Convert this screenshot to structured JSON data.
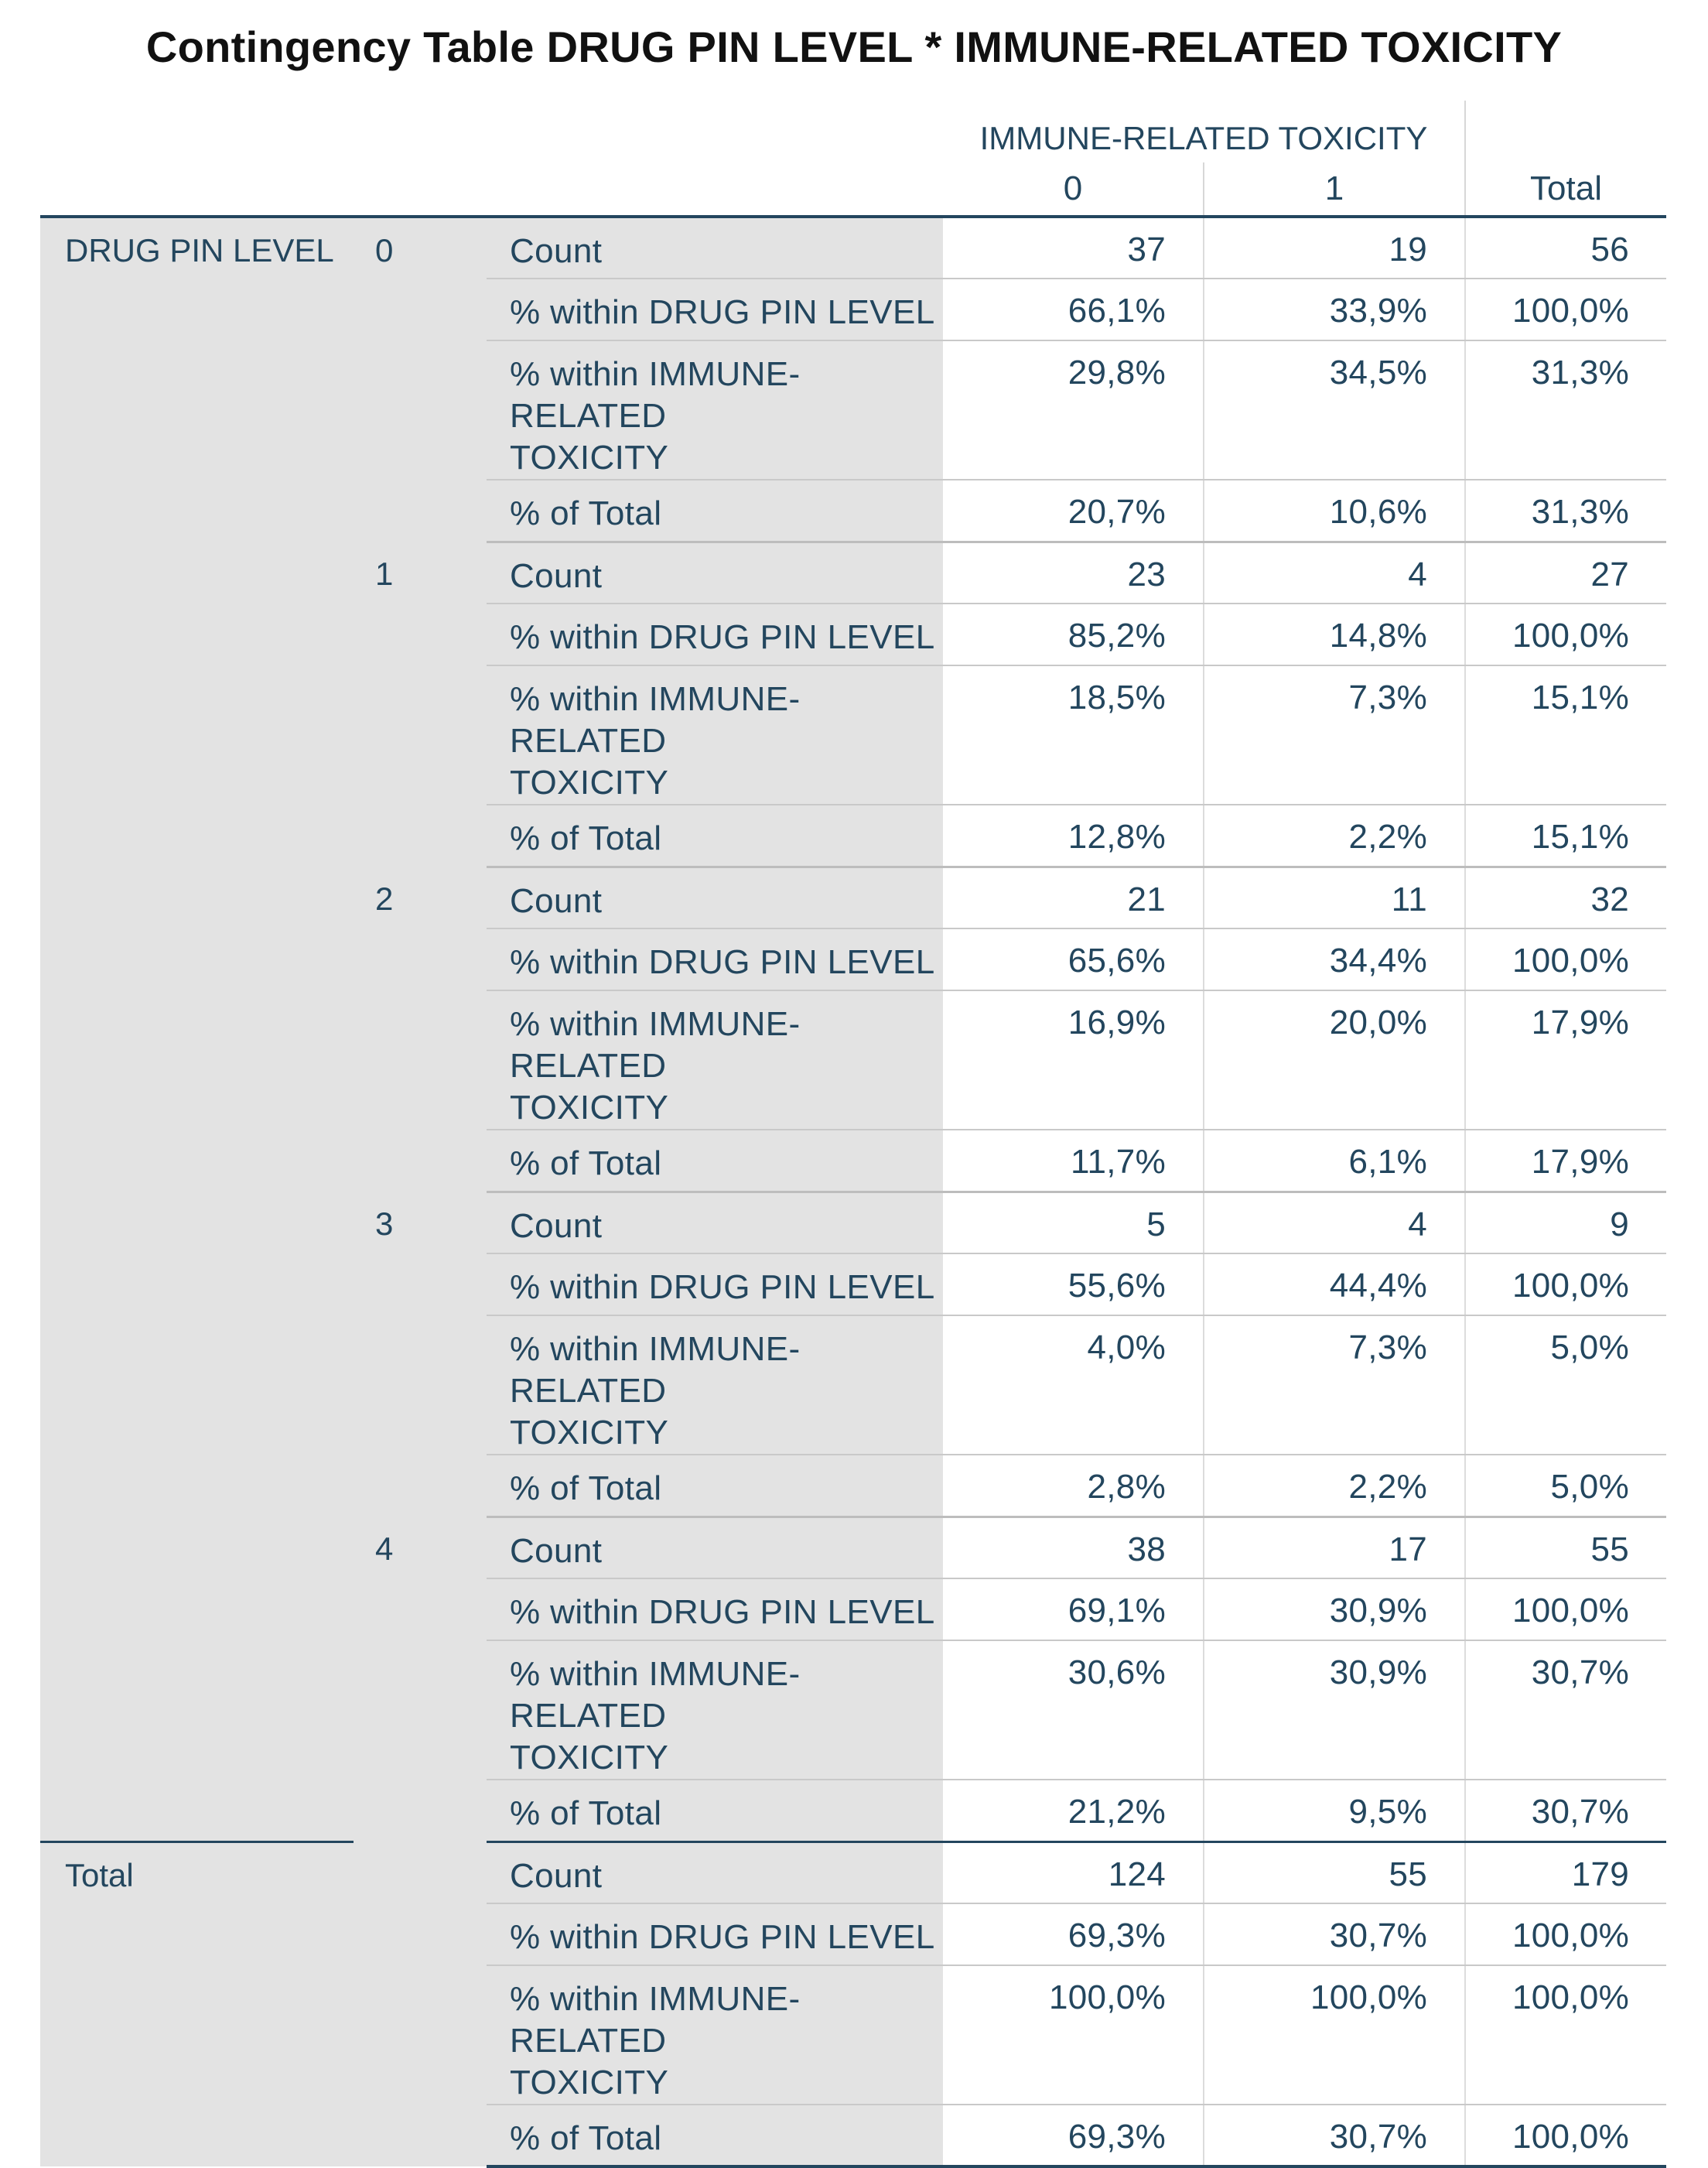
{
  "title": "Contingency Table DRUG PIN LEVEL * IMMUNE-RELATED TOXICITY",
  "header": {
    "group_label": "IMMUNE-RELATED TOXICITY",
    "col0": "0",
    "col1": "1",
    "total": "Total"
  },
  "row_variable": "DRUG PIN LEVEL",
  "stat_labels": {
    "count": "Count",
    "within_row_line1": "% within DRUG PIN LEVEL",
    "within_col_line1": "% within IMMUNE-RELATED",
    "within_col_line2": "TOXICITY",
    "of_total": "% of Total"
  },
  "groups": [
    {
      "level": "0",
      "rows": [
        [
          "37",
          "19",
          "56"
        ],
        [
          "66,1%",
          "33,9%",
          "100,0%"
        ],
        [
          "29,8%",
          "34,5%",
          "31,3%"
        ],
        [
          "20,7%",
          "10,6%",
          "31,3%"
        ]
      ]
    },
    {
      "level": "1",
      "rows": [
        [
          "23",
          "4",
          "27"
        ],
        [
          "85,2%",
          "14,8%",
          "100,0%"
        ],
        [
          "18,5%",
          "7,3%",
          "15,1%"
        ],
        [
          "12,8%",
          "2,2%",
          "15,1%"
        ]
      ]
    },
    {
      "level": "2",
      "rows": [
        [
          "21",
          "11",
          "32"
        ],
        [
          "65,6%",
          "34,4%",
          "100,0%"
        ],
        [
          "16,9%",
          "20,0%",
          "17,9%"
        ],
        [
          "11,7%",
          "6,1%",
          "17,9%"
        ]
      ]
    },
    {
      "level": "3",
      "rows": [
        [
          "5",
          "4",
          "9"
        ],
        [
          "55,6%",
          "44,4%",
          "100,0%"
        ],
        [
          "4,0%",
          "7,3%",
          "5,0%"
        ],
        [
          "2,8%",
          "2,2%",
          "5,0%"
        ]
      ]
    },
    {
      "level": "4",
      "rows": [
        [
          "38",
          "17",
          "55"
        ],
        [
          "69,1%",
          "30,9%",
          "100,0%"
        ],
        [
          "30,6%",
          "30,9%",
          "30,7%"
        ],
        [
          "21,2%",
          "9,5%",
          "30,7%"
        ]
      ]
    }
  ],
  "total_group": {
    "label": "Total",
    "rows": [
      [
        "124",
        "55",
        "179"
      ],
      [
        "69,3%",
        "30,7%",
        "100,0%"
      ],
      [
        "100,0%",
        "100,0%",
        "100,0%"
      ],
      [
        "69,3%",
        "30,7%",
        "100,0%"
      ]
    ]
  }
}
